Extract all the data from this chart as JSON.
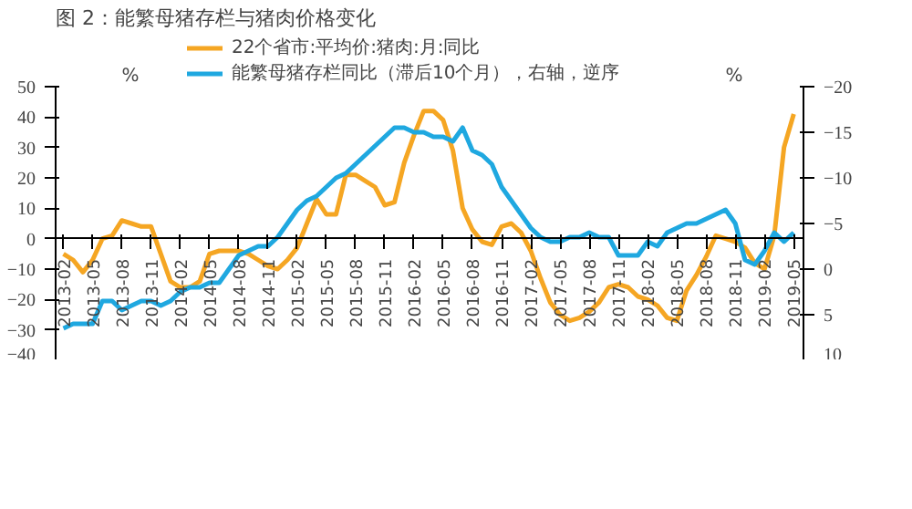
{
  "chart_data": {
    "type": "line",
    "title": "图 2：能繁母猪存栏与猪肉价格变化",
    "categories": [
      "2013-02",
      null,
      null,
      "2013-05",
      null,
      null,
      "2013-08",
      null,
      null,
      "2013-11",
      null,
      null,
      "2014-02",
      null,
      null,
      "2014-05",
      null,
      null,
      "2014-08",
      null,
      null,
      "2014-11",
      null,
      null,
      "2015-02",
      null,
      null,
      "2015-05",
      null,
      null,
      "2015-08",
      null,
      null,
      "2015-11",
      null,
      null,
      "2016-02",
      null,
      null,
      "2016-05",
      null,
      null,
      "2016-08",
      null,
      null,
      "2016-11",
      null,
      null,
      "2017-02",
      null,
      null,
      "2017-05",
      null,
      null,
      "2017-08",
      null,
      null,
      "2017-11",
      null,
      null,
      "2018-02",
      null,
      null,
      "2018-05",
      null,
      null,
      "2018-08",
      null,
      null,
      "2018-11",
      null,
      null,
      "2019-02",
      null,
      null,
      "2019-05"
    ],
    "series": [
      {
        "name": "22个省市:平均价:猪肉:月:同比",
        "color": "#f5a623",
        "values": [
          -5,
          -7,
          -11,
          -7,
          0,
          1,
          6,
          5,
          4,
          4,
          -5,
          -14,
          -16,
          -16,
          -14,
          -5,
          -4,
          -4,
          -4,
          -5,
          -7,
          -9,
          -10,
          -7,
          -3,
          5,
          13,
          8,
          8,
          21,
          21,
          19,
          17,
          11,
          12,
          25,
          34,
          42,
          42,
          39,
          29,
          10,
          3,
          -1,
          -2,
          4,
          5,
          2,
          -4,
          -13,
          -21,
          -25,
          -27,
          -26,
          -24,
          -21,
          -16,
          -15,
          -16,
          -19,
          -20,
          -22,
          -26,
          -27,
          -17,
          -12,
          -6,
          1,
          0,
          -1,
          -3,
          -8,
          -10,
          1,
          30,
          41
        ]
      },
      {
        "name": "能繁母猪存栏同比（滞后10个月），右轴，逆序",
        "color": "#1fa8e0",
        "axis": "y2",
        "values": [
          6.5,
          6,
          6,
          6,
          3.5,
          3.5,
          4.5,
          4,
          3.5,
          3.5,
          4,
          3.5,
          2.5,
          2,
          2,
          1.5,
          1.5,
          0,
          -1.5,
          -2,
          -2.5,
          -2.5,
          -3.5,
          -5,
          -6.5,
          -7.5,
          -8,
          -9,
          -10,
          -10.5,
          -11.5,
          -12.5,
          -13.5,
          -14.5,
          -15.5,
          -15.5,
          -15,
          -15,
          -14.5,
          -14.5,
          -14,
          -15.5,
          -13,
          -12.5,
          -11.5,
          -9,
          -7.5,
          -6,
          -4.5,
          -3.5,
          -3,
          -3,
          -3.5,
          -3.5,
          -4,
          -3.5,
          -3.5,
          -1.5,
          -1.5,
          -1.5,
          -3,
          -2.5,
          -4,
          -4.5,
          -5,
          -5,
          -5.5,
          -6,
          -6.5,
          -5,
          -1,
          -0.5,
          -2,
          -4,
          -3,
          -4
        ]
      }
    ],
    "ylim": [
      -40,
      50
    ],
    "yticks": [
      -40,
      -30,
      -20,
      -10,
      0,
      10,
      20,
      30,
      40,
      50
    ],
    "y2lim": [
      10,
      -20
    ],
    "y2ticks": [
      -20,
      -15,
      -10,
      -5,
      0,
      5,
      10
    ],
    "ylabel": "%",
    "y2label": "%",
    "grid": false,
    "legend": "top"
  }
}
